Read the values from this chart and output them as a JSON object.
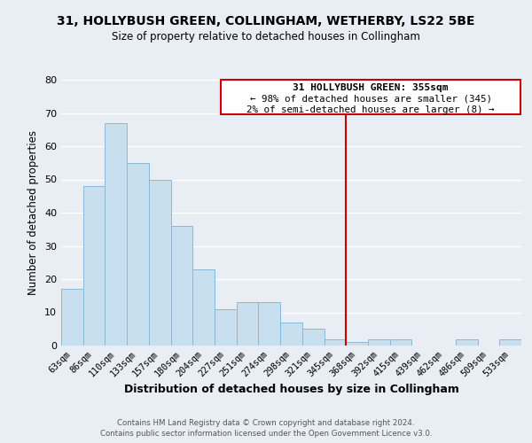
{
  "title": "31, HOLLYBUSH GREEN, COLLINGHAM, WETHERBY, LS22 5BE",
  "subtitle": "Size of property relative to detached houses in Collingham",
  "xlabel": "Distribution of detached houses by size in Collingham",
  "ylabel": "Number of detached properties",
  "bar_labels": [
    "63sqm",
    "86sqm",
    "110sqm",
    "133sqm",
    "157sqm",
    "180sqm",
    "204sqm",
    "227sqm",
    "251sqm",
    "274sqm",
    "298sqm",
    "321sqm",
    "345sqm",
    "368sqm",
    "392sqm",
    "415sqm",
    "439sqm",
    "462sqm",
    "486sqm",
    "509sqm",
    "533sqm"
  ],
  "bar_heights": [
    17,
    48,
    67,
    55,
    50,
    36,
    23,
    11,
    13,
    13,
    7,
    5,
    2,
    1,
    2,
    2,
    0,
    0,
    2,
    0,
    2
  ],
  "bar_color": "#c8dff0",
  "bar_edge_color": "#8ab8d8",
  "vline_x": 12.5,
  "vline_color": "#cc0000",
  "annotation_title": "31 HOLLYBUSH GREEN: 355sqm",
  "annotation_line1": "← 98% of detached houses are smaller (345)",
  "annotation_line2": "2% of semi-detached houses are larger (8) →",
  "annotation_box_color": "#ffffff",
  "annotation_box_edge": "#cc0000",
  "ylim": [
    0,
    80
  ],
  "yticks": [
    0,
    10,
    20,
    30,
    40,
    50,
    60,
    70,
    80
  ],
  "background_color": "#e8eef4",
  "grid_color": "#ffffff",
  "footer1": "Contains HM Land Registry data © Crown copyright and database right 2024.",
  "footer2": "Contains public sector information licensed under the Open Government Licence v3.0."
}
